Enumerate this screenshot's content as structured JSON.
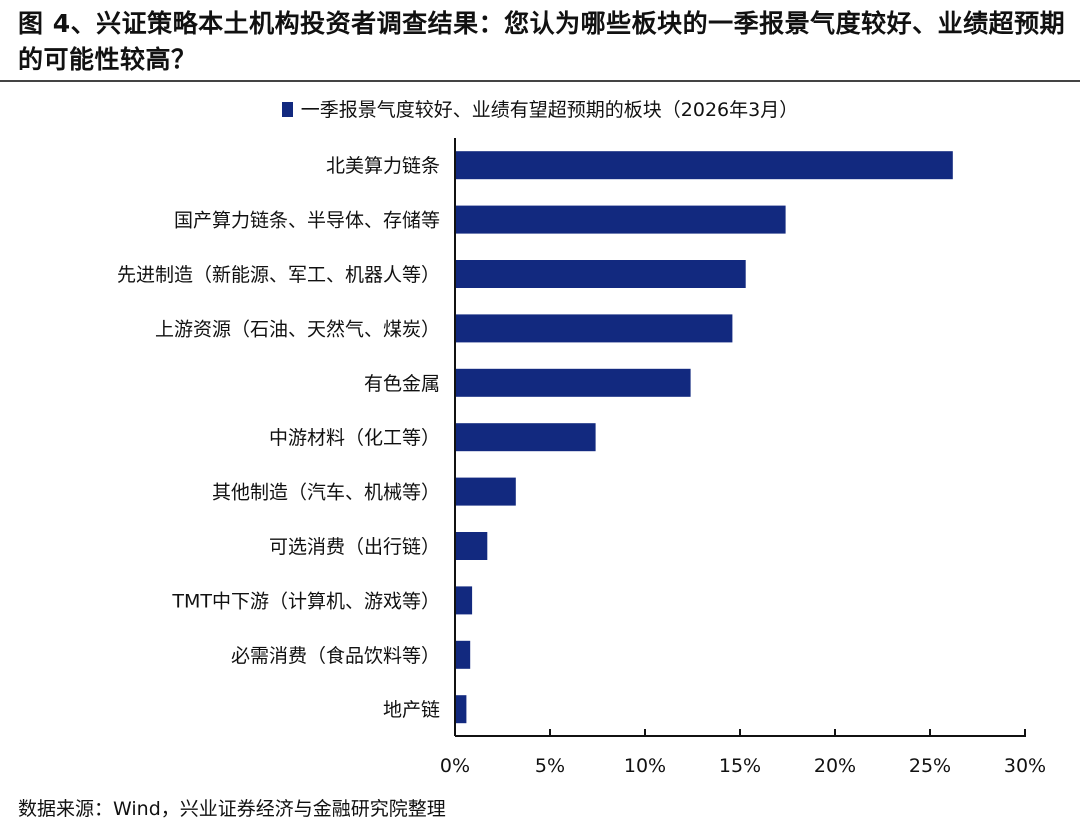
{
  "title": "图 4、兴证策略本土机构投资者调查结果：您认为哪些板块的一季报景气度较好、业绩超预期的可能性较高？",
  "source": "数据来源：Wind，兴业证券经济与金融研究院整理",
  "chart_data": {
    "type": "bar",
    "orientation": "horizontal",
    "categories": [
      "北美算力链条",
      "国产算力链条、半导体、存储等",
      "先进制造（新能源、军工、机器人等）",
      "上游资源（石油、天然气、煤炭）",
      "有色金属",
      "中游材料（化工等）",
      "其他制造（汽车、机械等）",
      "可选消费（出行链）",
      "TMT中下游（计算机、游戏等）",
      "必需消费（食品饮料等）",
      "地产链"
    ],
    "series": [
      {
        "name": "一季报景气度较好、业绩有望超预期的板块（2026年3月）",
        "values": [
          26.2,
          17.4,
          15.3,
          14.6,
          12.4,
          7.4,
          3.2,
          1.7,
          0.9,
          0.8,
          0.6
        ],
        "color": "#12297f"
      }
    ],
    "xlim": [
      0,
      30
    ],
    "xticks": [
      "0%",
      "5%",
      "10%",
      "15%",
      "20%",
      "25%",
      "30%"
    ],
    "xtick_values": [
      0,
      5,
      10,
      15,
      20,
      25,
      30
    ],
    "legend": "top-center",
    "grid": false
  }
}
